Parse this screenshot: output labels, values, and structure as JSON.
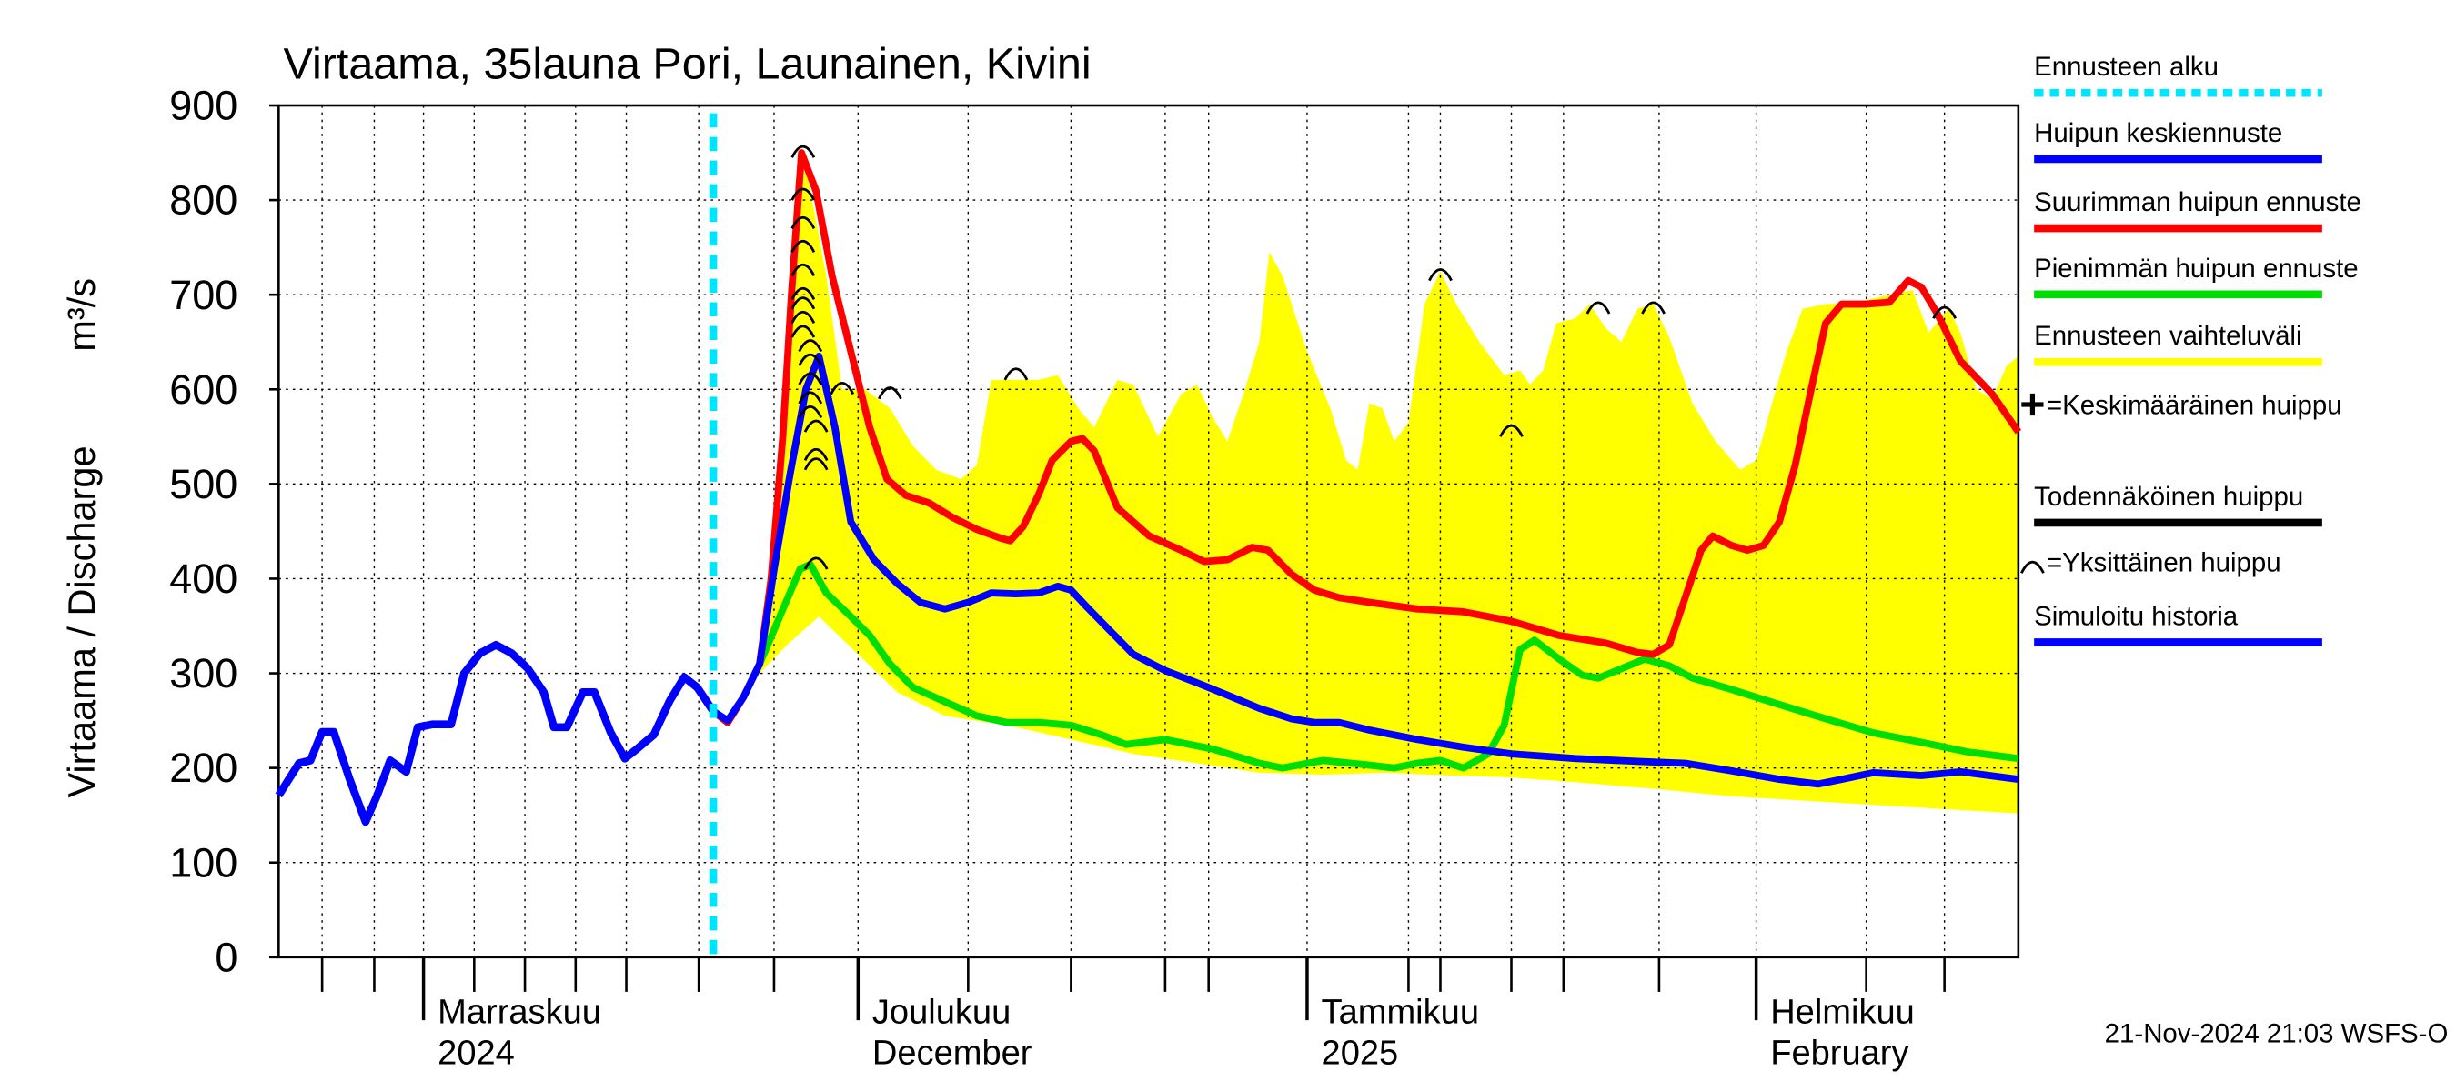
{
  "chart_data": {
    "type": "line",
    "title": "Virtaama, 35launa Pori, Launainen, Kivini",
    "y_label": "Virtaama / Discharge",
    "y_unit": "m³/s",
    "timestamp": "21-Nov-2024 21:03 WSFS-O",
    "xlim": [
      0,
      120.1
    ],
    "ylim": [
      0,
      900
    ],
    "yticks": [
      0,
      100,
      200,
      300,
      400,
      500,
      600,
      700,
      800,
      900
    ],
    "xticks": [
      {
        "value": 10,
        "label": "Marraskuu",
        "sublabel": "2024"
      },
      {
        "value": 40,
        "label": "Joulukuu",
        "sublabel": "December"
      },
      {
        "value": 71,
        "label": "Tammikuu",
        "sublabel": "2025"
      },
      {
        "value": 102,
        "label": "Helmikuu",
        "sublabel": "February"
      }
    ],
    "xgrid": [
      3,
      6.6,
      13.5,
      17,
      20.5,
      24,
      29,
      34.2,
      47.6,
      54.7,
      61.2,
      64.2,
      78,
      80.2,
      85.1,
      88.7,
      95.3,
      109.6,
      115
    ],
    "grid": true,
    "forecast_start": {
      "name": "Ennusteen alku",
      "x": 30,
      "color": "#00e5ff"
    },
    "band": {
      "name": "Ennusteen vaihteluväli",
      "color": "#ffff00",
      "upper": {
        "x": [
          30,
          31,
          33.2,
          34.6,
          35.7,
          36.4,
          37.8,
          38.9,
          40.5,
          42.2,
          43.8,
          45.4,
          47.1,
          48.2,
          49.2,
          50.9,
          52.5,
          53.8,
          55.2,
          56.3,
          57.9,
          59,
          60.7,
          62.3,
          63.4,
          64.5,
          65.5,
          66.6,
          67.7,
          68.4,
          69.3,
          71,
          72.6,
          73.7,
          74.5,
          75.3,
          76.2,
          77,
          78,
          79.1,
          80.2,
          81.3,
          82.9,
          84.6,
          85.7,
          86.4,
          87.3,
          88.2,
          89.5,
          90.5,
          91.6,
          92.7,
          93.8,
          94.9,
          96,
          97.6,
          99.2,
          100.9,
          102,
          103,
          104.1,
          105.2,
          106.8,
          109,
          111.2,
          112.8,
          113.9,
          115.3,
          116.1,
          117.2,
          118.3,
          119.3,
          120.1
        ],
        "values": [
          260,
          248,
          310,
          450,
          800,
          835,
          720,
          600,
          600,
          580,
          540,
          515,
          505,
          520,
          610,
          610,
          610,
          615,
          580,
          560,
          610,
          605,
          550,
          595,
          605,
          570,
          545,
          595,
          650,
          745,
          720,
          640,
          580,
          525,
          515,
          585,
          580,
          545,
          565,
          690,
          725,
          690,
          650,
          615,
          620,
          605,
          620,
          670,
          675,
          690,
          665,
          650,
          685,
          690,
          655,
          585,
          545,
          515,
          525,
          580,
          640,
          685,
          690,
          692,
          700,
          705,
          660,
          685,
          660,
          600,
          590,
          625,
          635
        ]
      },
      "lower": {
        "x": [
          30,
          33.2,
          35.1,
          37.3,
          40,
          42.7,
          46,
          50.3,
          54.7,
          59,
          63.4,
          67.7,
          72.1,
          76.4,
          80.8,
          85.1,
          89.5,
          94.9,
          100.3,
          105.8,
          111.2,
          116.6,
          120.1
        ],
        "values": [
          260,
          300,
          330,
          360,
          320,
          280,
          255,
          245,
          230,
          215,
          205,
          195,
          193,
          195,
          192,
          190,
          185,
          178,
          170,
          165,
          160,
          155,
          152
        ]
      }
    },
    "series": [
      {
        "name": "Simuloitu historia",
        "color": "#0000ff",
        "x": [
          0,
          1.4,
          2.2,
          3,
          3.8,
          4.9,
          6,
          6.8,
          7.7,
          8.8,
          9.6,
          10.6,
          11.9,
          12.8,
          13.9,
          15,
          16.1,
          17.2,
          18.3,
          19,
          19.9,
          21,
          21.8,
          22.9,
          23.9,
          24.8,
          25.9,
          27,
          28,
          28.9,
          30
        ],
        "values": [
          171,
          205,
          208,
          238,
          238,
          188,
          143,
          171,
          208,
          196,
          243,
          246,
          246,
          300,
          321,
          330,
          321,
          305,
          280,
          243,
          243,
          280,
          280,
          238,
          210,
          221,
          235,
          271,
          296,
          285,
          260
        ]
      },
      {
        "name": "Pienimmän huipun ennuste",
        "color": "#00dd00",
        "x": [
          30,
          31,
          32.1,
          33.2,
          34.6,
          36,
          36.7,
          37.8,
          39.5,
          40.8,
          42.2,
          43.8,
          46,
          48.2,
          50.3,
          52.5,
          54.7,
          56.8,
          58.5,
          61.2,
          64.5,
          67.7,
          69.3,
          72.1,
          75.3,
          77,
          78.6,
          80.2,
          81.8,
          83.5,
          84.6,
          85.7,
          86.7,
          88.4,
          90,
          91.1,
          92.7,
          94.3,
          96,
          97.6,
          100.3,
          103.6,
          106.8,
          110.1,
          113.4,
          116.6,
          120.1
        ],
        "values": [
          260,
          248,
          275,
          310,
          360,
          410,
          415,
          385,
          360,
          340,
          310,
          285,
          270,
          255,
          248,
          248,
          245,
          235,
          225,
          230,
          220,
          205,
          200,
          208,
          203,
          200,
          205,
          208,
          200,
          215,
          245,
          325,
          335,
          315,
          298,
          295,
          305,
          315,
          308,
          295,
          283,
          267,
          252,
          237,
          227,
          217,
          210
        ]
      },
      {
        "name": "Suurimman huipun ennuste",
        "color": "#ff0000",
        "x": [
          30,
          31,
          32.1,
          33.2,
          34,
          34.8,
          35.4,
          36.1,
          37.1,
          38.2,
          39.5,
          40.8,
          42,
          43.3,
          44.9,
          46.5,
          48.2,
          49.8,
          50.5,
          51.4,
          52.5,
          53.4,
          54.7,
          55.5,
          56.3,
          57.9,
          60.1,
          62.3,
          63.9,
          65.5,
          67.2,
          68.3,
          69.9,
          71.5,
          73.2,
          75.3,
          78.6,
          81.8,
          85.1,
          88.4,
          91.6,
          93.8,
          94.9,
          96,
          97.1,
          98.2,
          99,
          100.3,
          101.4,
          102.5,
          103.6,
          104.7,
          105.8,
          106.8,
          107.9,
          109.6,
          111.2,
          112.5,
          113.4,
          114.5,
          116.1,
          118.3,
          120.1
        ],
        "values": [
          260,
          248,
          275,
          310,
          400,
          550,
          700,
          850,
          810,
          720,
          640,
          560,
          505,
          488,
          480,
          465,
          452,
          443,
          440,
          455,
          490,
          525,
          545,
          548,
          535,
          475,
          445,
          430,
          418,
          420,
          433,
          430,
          405,
          388,
          380,
          375,
          368,
          365,
          355,
          340,
          332,
          322,
          320,
          330,
          380,
          430,
          445,
          435,
          430,
          435,
          460,
          520,
          600,
          670,
          690,
          690,
          692,
          715,
          708,
          680,
          630,
          595,
          555
        ]
      },
      {
        "name": "Huipun keskiennuste",
        "color": "#0000ff",
        "x": [
          30,
          31,
          32.1,
          33.2,
          34.2,
          35.3,
          36.4,
          37.3,
          38.4,
          39.5,
          41.1,
          42.7,
          44.3,
          46,
          47.6,
          49.2,
          50.9,
          52.5,
          53.8,
          54.7,
          55.8,
          57.4,
          59,
          61.2,
          63.4,
          65.5,
          67.7,
          69.9,
          71.5,
          73.2,
          75.3,
          78.6,
          81.8,
          85.1,
          89.5,
          93.8,
          97.1,
          100.3,
          103.6,
          106.3,
          107.9,
          110.1,
          113.4,
          116.1,
          120.1
        ],
        "values": [
          260,
          250,
          275,
          310,
          410,
          510,
          600,
          635,
          560,
          460,
          420,
          395,
          375,
          368,
          375,
          385,
          384,
          385,
          392,
          388,
          370,
          345,
          320,
          303,
          290,
          277,
          263,
          252,
          248,
          248,
          240,
          230,
          222,
          215,
          210,
          207,
          205,
          197,
          188,
          183,
          188,
          195,
          192,
          196,
          188
        ]
      }
    ],
    "mean_peak": {
      "name": "=Keskimääräinen huippu"
    },
    "probable_peak": {
      "name": "Todennäköinen huippu",
      "color": "#000000"
    },
    "peaks": {
      "name": "=Yksittäinen huippu",
      "x": [
        36.2,
        36.2,
        36.2,
        36.2,
        36.2,
        36.2,
        36.2,
        36.2,
        36.2,
        36.7,
        36.7,
        36.7,
        36.7,
        36.7,
        37.1,
        37.1,
        37.1,
        37.1,
        38.9,
        42.2,
        50.9,
        80.2,
        85.1,
        91.1,
        94.9,
        115
      ],
      "values": [
        850,
        805,
        775,
        750,
        725,
        700,
        690,
        675,
        660,
        645,
        630,
        610,
        590,
        575,
        560,
        530,
        520,
        415,
        600,
        595,
        615,
        720,
        555,
        685,
        685,
        680
      ]
    }
  }
}
